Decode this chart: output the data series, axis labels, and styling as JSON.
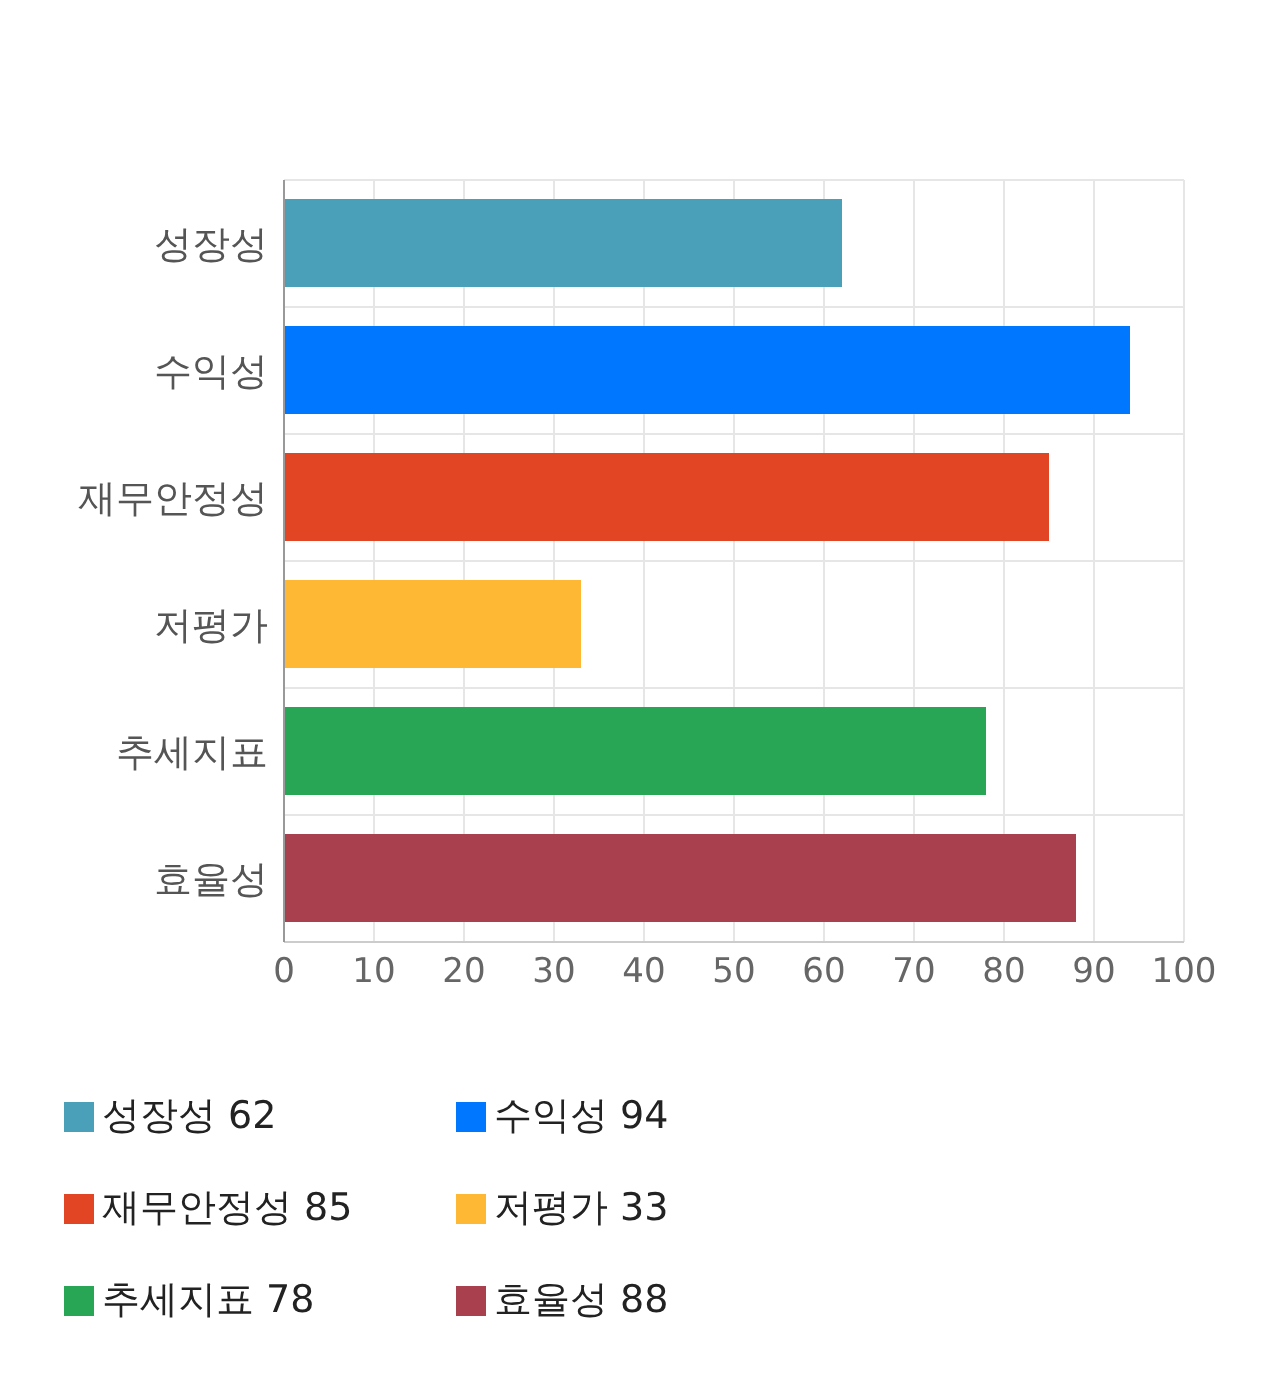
{
  "chart_data": {
    "type": "bar",
    "orientation": "horizontal",
    "stacked": true,
    "categories": [
      "성장성",
      "수익성",
      "재무안정성",
      "저평가",
      "추세지표",
      "효율성"
    ],
    "series": [
      {
        "name": "성장성 62",
        "color": "#4aa0b8",
        "values": [
          62,
          null,
          null,
          null,
          null,
          null
        ]
      },
      {
        "name": "수익성 94",
        "color": "#0077ff",
        "values": [
          null,
          94,
          null,
          null,
          null,
          null
        ]
      },
      {
        "name": "재무안정성 85",
        "color": "#e14523",
        "values": [
          null,
          null,
          85,
          null,
          null,
          null
        ]
      },
      {
        "name": "저평가 33",
        "color": "#ffb833",
        "values": [
          null,
          null,
          null,
          33,
          null,
          null
        ]
      },
      {
        "name": "추세지표 78",
        "color": "#28a655",
        "values": [
          null,
          null,
          null,
          null,
          78,
          null
        ]
      },
      {
        "name": "효율성 88",
        "color": "#a8404e",
        "values": [
          null,
          null,
          null,
          null,
          null,
          88
        ]
      }
    ],
    "xlim": [
      0,
      100
    ],
    "xticks": [
      0,
      10,
      20,
      30,
      40,
      50,
      60,
      70,
      80,
      90,
      100
    ],
    "grid": true,
    "legend": "bottom"
  }
}
